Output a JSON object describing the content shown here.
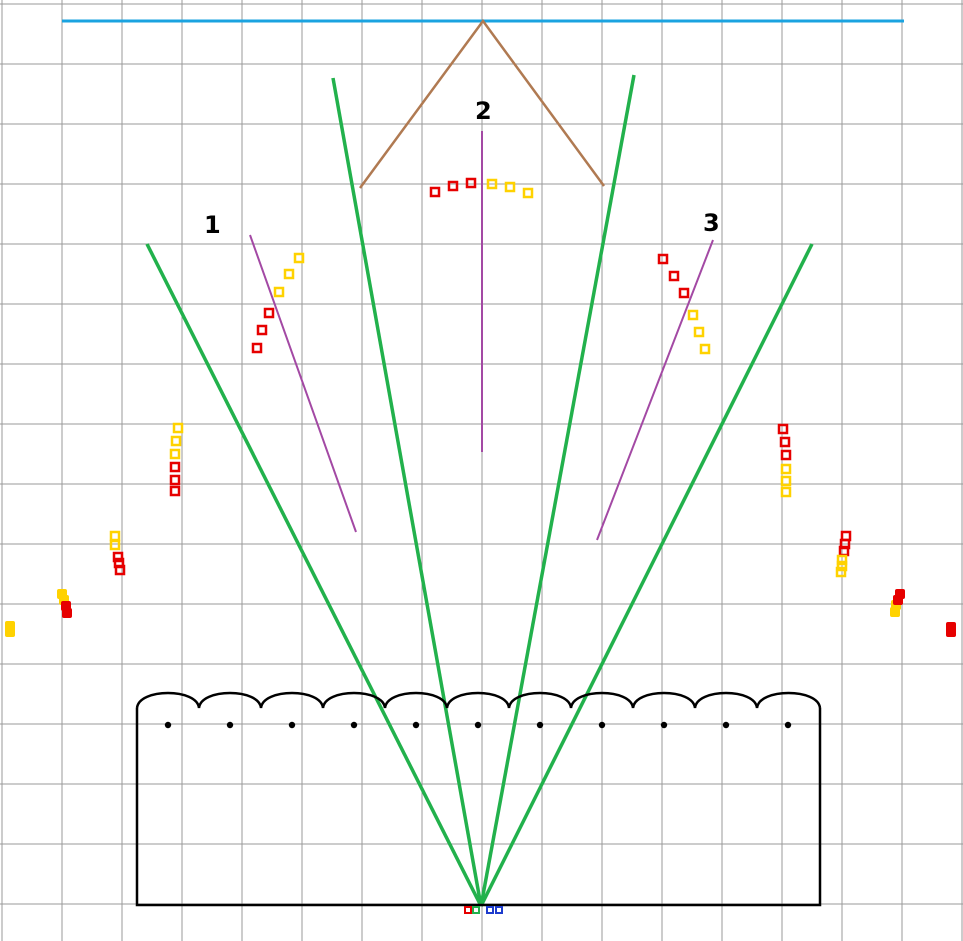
{
  "colors": {
    "background": "#ffffff",
    "grid": "#9a9a9a",
    "top_line": "#1aa3e0",
    "roof": "#b07a52",
    "green_rays": "#22b14c",
    "purple_lines": "#a349a4",
    "red_marker": "#e60000",
    "yellow_marker": "#ffd200",
    "outline": "#000000"
  },
  "labels": {
    "one": "1",
    "two": "2",
    "three": "3"
  },
  "legend_icons": [
    "red-square-icon",
    "green-square-icon",
    "blue-square-icon",
    "blue-square-icon"
  ]
}
